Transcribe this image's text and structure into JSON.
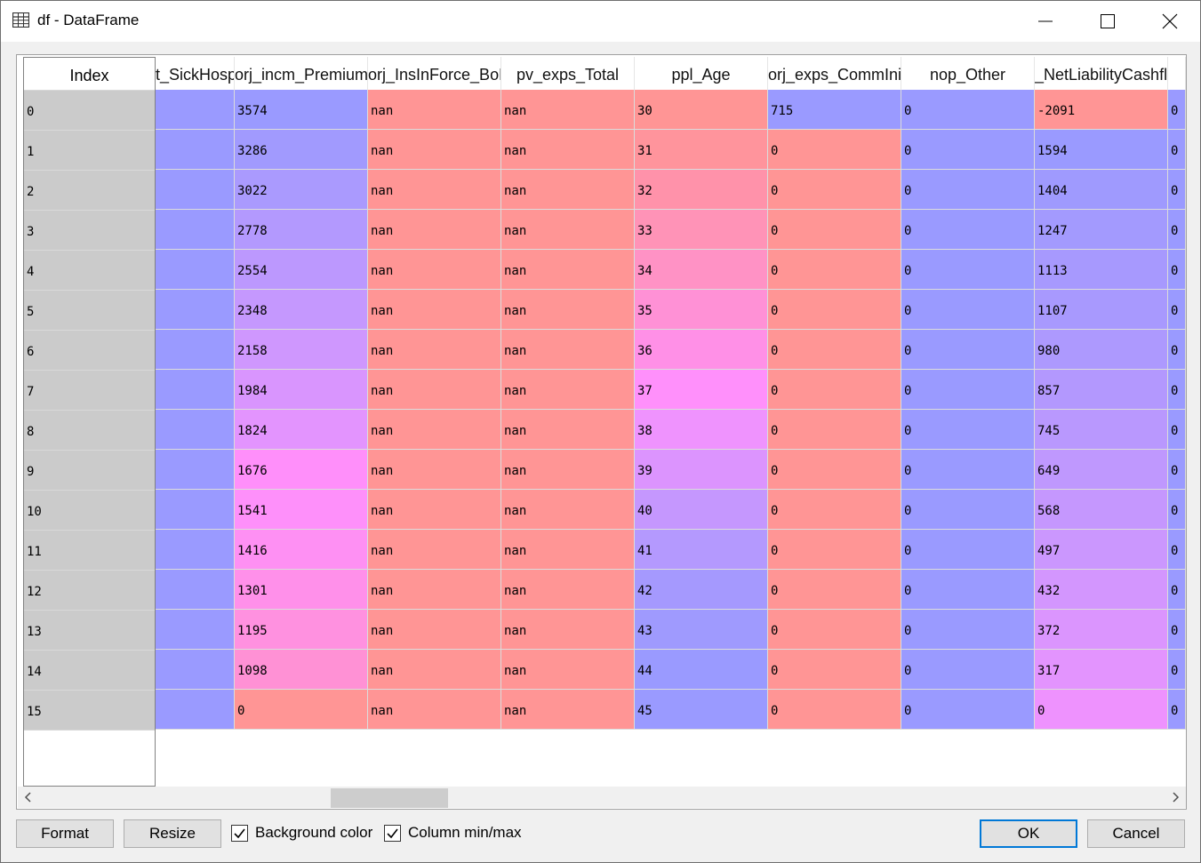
{
  "window": {
    "title": "df - DataFrame",
    "icon": "table-icon"
  },
  "table": {
    "index_header": "Index",
    "columns": [
      "t_SickHosp",
      "orj_incm_Premium",
      "orj_InsInForce_BoP",
      "pv_exps_Total",
      "ppl_Age",
      "orj_exps_CommIni",
      "nop_Other",
      "_NetLiabilityCashfl",
      ""
    ],
    "index": [
      "0",
      "1",
      "2",
      "3",
      "4",
      "5",
      "6",
      "7",
      "8",
      "9",
      "10",
      "11",
      "12",
      "13",
      "14",
      "15"
    ],
    "rows": [
      [
        "",
        "3574",
        "nan",
        "nan",
        "30",
        "715",
        "0",
        "-2091",
        "0"
      ],
      [
        "",
        "3286",
        "nan",
        "nan",
        "31",
        "0",
        "0",
        "1594",
        "0"
      ],
      [
        "",
        "3022",
        "nan",
        "nan",
        "32",
        "0",
        "0",
        "1404",
        "0"
      ],
      [
        "",
        "2778",
        "nan",
        "nan",
        "33",
        "0",
        "0",
        "1247",
        "0"
      ],
      [
        "",
        "2554",
        "nan",
        "nan",
        "34",
        "0",
        "0",
        "1113",
        "0"
      ],
      [
        "",
        "2348",
        "nan",
        "nan",
        "35",
        "0",
        "0",
        "1107",
        "0"
      ],
      [
        "",
        "2158",
        "nan",
        "nan",
        "36",
        "0",
        "0",
        "980",
        "0"
      ],
      [
        "",
        "1984",
        "nan",
        "nan",
        "37",
        "0",
        "0",
        "857",
        "0"
      ],
      [
        "",
        "1824",
        "nan",
        "nan",
        "38",
        "0",
        "0",
        "745",
        "0"
      ],
      [
        "",
        "1676",
        "nan",
        "nan",
        "39",
        "0",
        "0",
        "649",
        "0"
      ],
      [
        "",
        "1541",
        "nan",
        "nan",
        "40",
        "0",
        "0",
        "568",
        "0"
      ],
      [
        "",
        "1416",
        "nan",
        "nan",
        "41",
        "0",
        "0",
        "497",
        "0"
      ],
      [
        "",
        "1301",
        "nan",
        "nan",
        "42",
        "0",
        "0",
        "432",
        "0"
      ],
      [
        "",
        "1195",
        "nan",
        "nan",
        "43",
        "0",
        "0",
        "372",
        "0"
      ],
      [
        "",
        "1098",
        "nan",
        "nan",
        "44",
        "0",
        "0",
        "317",
        "0"
      ],
      [
        "",
        "0",
        "nan",
        "nan",
        "45",
        "0",
        "0",
        "0",
        "0"
      ]
    ],
    "cell_colors": [
      [
        "#9a9aff",
        "#9a9aff",
        "#ff9595",
        "#ff9595",
        "#ff9595",
        "#9a9aff",
        "#9a9aff",
        "#ff9595",
        "#9a9aff"
      ],
      [
        "#9a9aff",
        "#a19afe",
        "#ff9595",
        "#ff9595",
        "#ff949c",
        "#ff9595",
        "#9a9aff",
        "#9a9aff",
        "#9a9aff"
      ],
      [
        "#9a9aff",
        "#aa9afe",
        "#ff9595",
        "#ff9595",
        "#ff92aa",
        "#ff9595",
        "#9a9aff",
        "#9f9afe",
        "#9a9aff"
      ],
      [
        "#9a9aff",
        "#b399fe",
        "#ff9595",
        "#ff9595",
        "#ff93b7",
        "#ff9595",
        "#9a9aff",
        "#a39afe",
        "#9a9aff"
      ],
      [
        "#9a9aff",
        "#bc98fe",
        "#ff9595",
        "#ff9595",
        "#ff92c5",
        "#ff9595",
        "#9a9aff",
        "#a799fe",
        "#9a9aff"
      ],
      [
        "#9a9aff",
        "#c598fe",
        "#ff9595",
        "#ff9595",
        "#ff91d6",
        "#ff9595",
        "#9a9aff",
        "#a899fe",
        "#9a9aff"
      ],
      [
        "#9a9aff",
        "#cf97fe",
        "#ff9595",
        "#ff9595",
        "#ff90e7",
        "#ff9595",
        "#9a9aff",
        "#ad99fe",
        "#9a9aff"
      ],
      [
        "#9a9aff",
        "#d995fe",
        "#ff9595",
        "#ff9595",
        "#ff90fb",
        "#ff9595",
        "#9a9aff",
        "#b398fe",
        "#9a9aff"
      ],
      [
        "#9a9aff",
        "#e394fe",
        "#ff9595",
        "#ff9595",
        "#ef93fe",
        "#ff9595",
        "#9a9aff",
        "#b998fe",
        "#9a9aff"
      ],
      [
        "#9a9aff",
        "#ff8ffa",
        "#ff9595",
        "#ff9595",
        "#dc94fe",
        "#ff9595",
        "#9a9aff",
        "#bf98fe",
        "#9a9aff"
      ],
      [
        "#9a9aff",
        "#fe90fa",
        "#ff9595",
        "#ff9595",
        "#c597fe",
        "#ff9595",
        "#9a9aff",
        "#c597fe",
        "#9a9aff"
      ],
      [
        "#9a9aff",
        "#fe90f3",
        "#ff9595",
        "#ff9595",
        "#b499fe",
        "#ff9595",
        "#9a9aff",
        "#cb97fe",
        "#9a9aff"
      ],
      [
        "#9a9aff",
        "#ff90ea",
        "#ff9595",
        "#ff9595",
        "#a599fe",
        "#ff9595",
        "#9a9aff",
        "#d396fe",
        "#9a9aff"
      ],
      [
        "#9a9aff",
        "#ff91e0",
        "#ff9595",
        "#ff9595",
        "#9f9afe",
        "#ff9595",
        "#9a9aff",
        "#db95fe",
        "#9a9aff"
      ],
      [
        "#9a9aff",
        "#ff91d5",
        "#ff9595",
        "#ff9595",
        "#9a9aff",
        "#ff9595",
        "#9a9aff",
        "#e394fe",
        "#9a9aff"
      ],
      [
        "#9a9aff",
        "#ff9595",
        "#ff9595",
        "#ff9595",
        "#9a9aff",
        "#ff9595",
        "#9a9aff",
        "#ee92fe",
        "#9a9aff"
      ]
    ]
  },
  "footer": {
    "format_label": "Format",
    "resize_label": "Resize",
    "background_color_label": "Background color",
    "background_color_checked": true,
    "column_minmax_label": "Column min/max",
    "column_minmax_checked": true,
    "ok_label": "OK",
    "cancel_label": "Cancel"
  }
}
